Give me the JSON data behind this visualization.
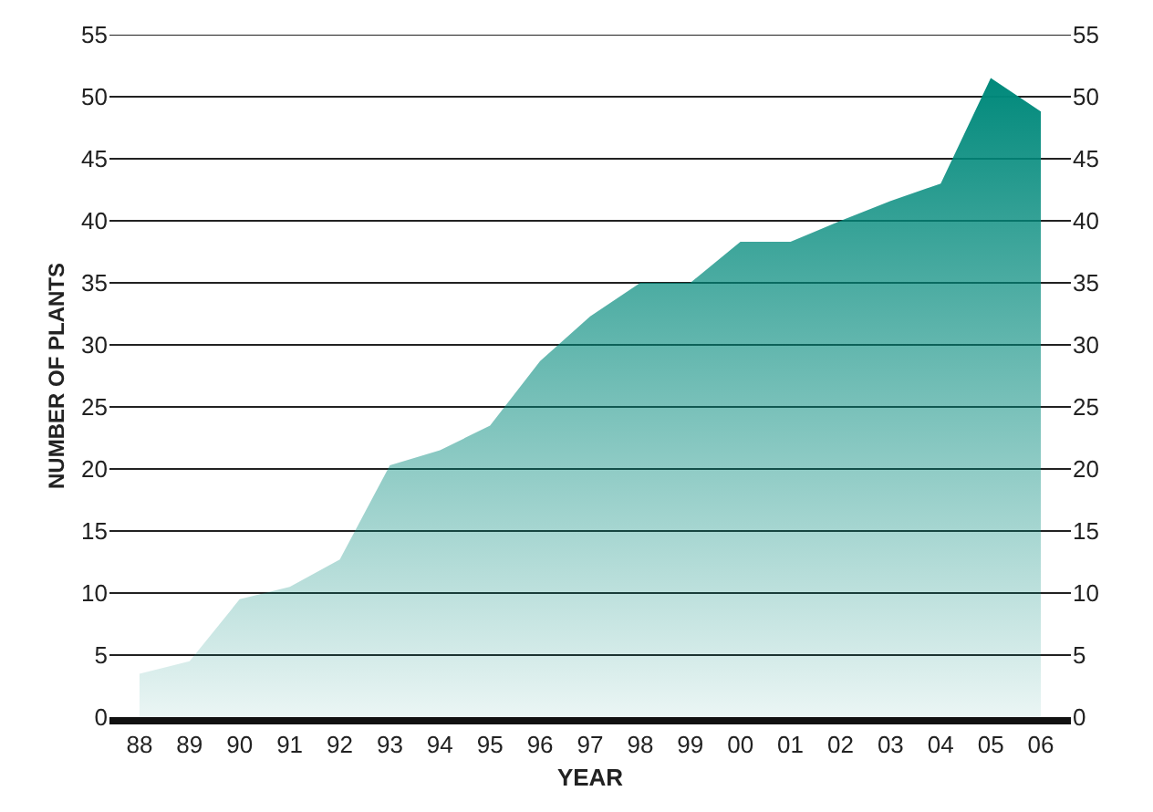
{
  "chart_data": {
    "type": "area",
    "xlabel": "YEAR",
    "ylabel": "NUMBER OF PLANTS",
    "categories": [
      "88",
      "89",
      "90",
      "91",
      "92",
      "93",
      "94",
      "95",
      "96",
      "97",
      "98",
      "99",
      "00",
      "01",
      "02",
      "03",
      "04",
      "05",
      "06"
    ],
    "series": [
      {
        "color": "#00897b",
        "values": [
          3.5,
          4.5,
          9.5,
          10.5,
          12.7,
          20.3,
          21.5,
          23.5,
          28.7,
          32.3,
          35,
          35,
          38.3,
          38.3,
          40,
          41.6,
          43,
          51.5,
          48.8
        ]
      }
    ],
    "ylim": [
      0,
      55
    ],
    "yticks": [
      0,
      5,
      10,
      15,
      20,
      25,
      30,
      35,
      40,
      45,
      50,
      55
    ],
    "y2lim": [
      0,
      55
    ],
    "y2ticks": [
      0,
      5,
      10,
      15,
      20,
      25,
      30,
      35,
      40,
      45,
      50,
      55
    ],
    "grid": "y"
  }
}
